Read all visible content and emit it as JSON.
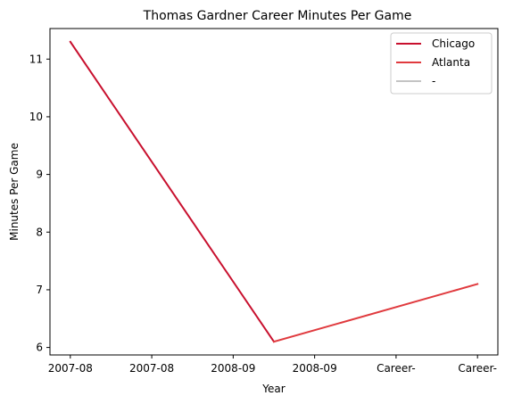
{
  "chart_data": {
    "type": "line",
    "title": "Thomas Gardner  Career Minutes Per Game",
    "xlabel": "Year",
    "ylabel": "Minutes Per Game",
    "categories": [
      "2007-08",
      "2007-08",
      "2008-09",
      "2008-09",
      "Career-",
      "Career-"
    ],
    "ylim": [
      5.87,
      11.53
    ],
    "yticks": [
      6,
      7,
      8,
      9,
      10,
      11
    ],
    "grid": false,
    "legend_position": "top-right",
    "series": [
      {
        "name": "Chicago",
        "color": "#c8102e",
        "points": [
          [
            0,
            11.3
          ],
          [
            2.5,
            6.1
          ]
        ]
      },
      {
        "name": "Atlanta",
        "color": "#e03a3e",
        "points": [
          [
            2.5,
            6.1
          ],
          [
            5,
            7.1
          ]
        ]
      },
      {
        "name": "-",
        "color": "#c4c4c4",
        "points": []
      }
    ]
  }
}
